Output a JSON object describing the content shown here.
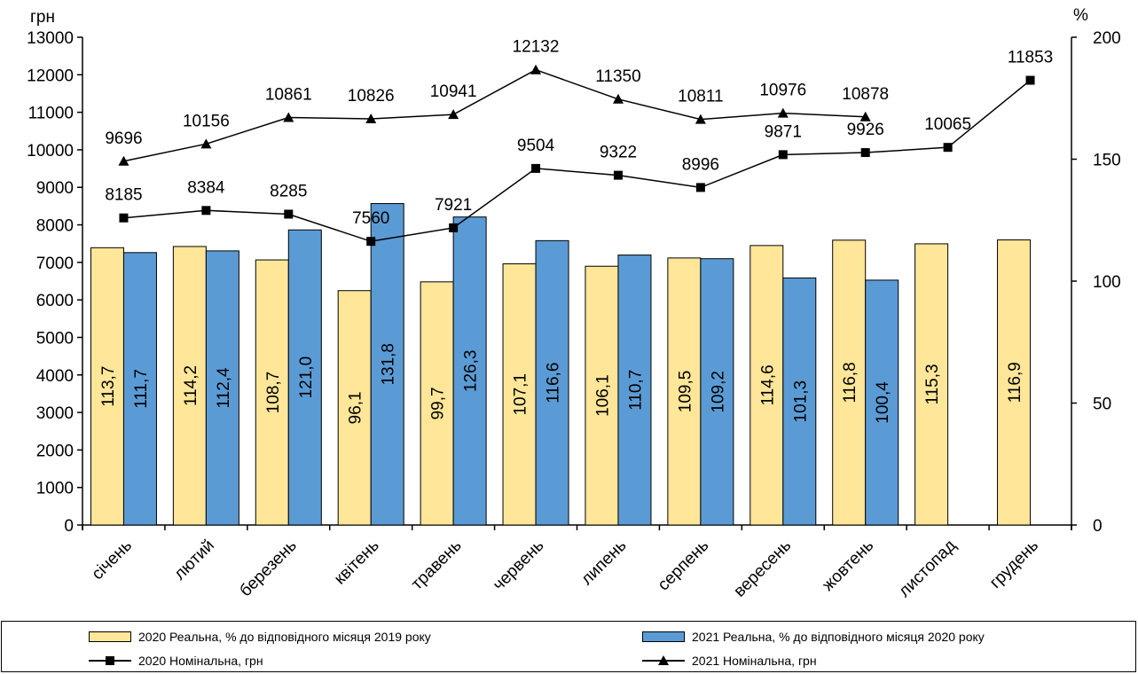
{
  "chart_data": {
    "type": "bar",
    "left_axis_label": "грн",
    "right_axis_label": "%",
    "left_ylim": [
      0,
      13000
    ],
    "left_yticks": [
      0,
      1000,
      2000,
      3000,
      4000,
      5000,
      6000,
      7000,
      8000,
      9000,
      10000,
      11000,
      12000,
      13000
    ],
    "right_ylim": [
      0,
      200
    ],
    "right_yticks": [
      0,
      50,
      100,
      150,
      200
    ],
    "categories": [
      "січень",
      "лютий",
      "березень",
      "квітень",
      "травень",
      "червень",
      "липень",
      "серпень",
      "вересень",
      "жовтень",
      "листопад",
      "грудень"
    ],
    "bar_series": [
      {
        "name": "2020 Реальна, % до відповідного місяця 2019 року",
        "color": "#FFE699",
        "axis": "right",
        "values": [
          113.7,
          114.2,
          108.7,
          96.1,
          99.7,
          107.1,
          106.1,
          109.5,
          114.6,
          116.8,
          115.3,
          116.9
        ],
        "labels": [
          "113,7",
          "114,2",
          "108,7",
          "96,1",
          "99,7",
          "107,1",
          "106,1",
          "109,5",
          "114,6",
          "116,8",
          "115,3",
          "116,9"
        ]
      },
      {
        "name": "2021 Реальна, % до відповідного місяця 2020 року",
        "color": "#5B9BD5",
        "axis": "right",
        "values": [
          111.7,
          112.4,
          121.0,
          131.8,
          126.3,
          116.6,
          110.7,
          109.2,
          101.3,
          100.4,
          null,
          null
        ],
        "labels": [
          "111,7",
          "112,4",
          "121,0",
          "131,8",
          "126,3",
          "116,6",
          "110,7",
          "109,2",
          "101,3",
          "100,4",
          "",
          ""
        ]
      }
    ],
    "line_series": [
      {
        "name": "2020 Номінальна, грн",
        "marker": "square",
        "color": "#000000",
        "axis": "left",
        "values": [
          8185,
          8384,
          8285,
          7560,
          7921,
          9504,
          9322,
          8996,
          9871,
          9926,
          10065,
          11853
        ]
      },
      {
        "name": "2021 Номінальна, грн",
        "marker": "triangle",
        "color": "#000000",
        "axis": "left",
        "values": [
          9696,
          10156,
          10861,
          10826,
          10941,
          12132,
          11350,
          10811,
          10976,
          10878,
          null,
          null
        ]
      }
    ],
    "legend_position": "bottom",
    "grid": false
  },
  "legend": {
    "bar2020": "2020 Реальна, % до відповідного місяця 2019 року",
    "bar2021": "2021 Реальна, % до відповідного місяця 2020 року",
    "line2020": "2020 Номінальна, грн",
    "line2021": "2021 Номінальна, грн"
  }
}
